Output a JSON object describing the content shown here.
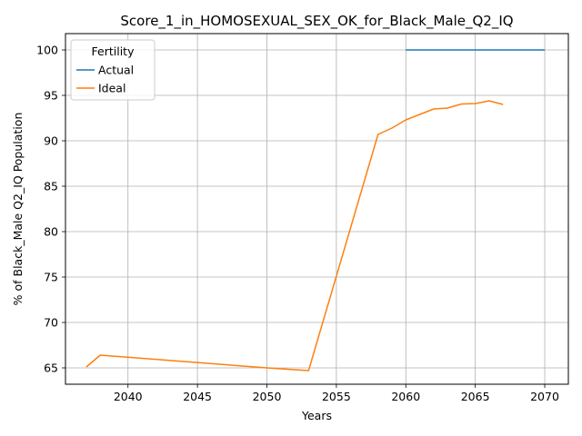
{
  "chart_data": {
    "type": "line",
    "title": "Score_1_in_HOMOSEXUAL_SEX_OK_for_Black_Male_Q2_IQ",
    "xlabel": "Years",
    "ylabel": "% of Black_Male Q2_IQ Population",
    "xlim": [
      2035.5,
      2071.7
    ],
    "ylim": [
      63.2,
      101.8
    ],
    "xticks": [
      2040,
      2045,
      2050,
      2055,
      2060,
      2065,
      2070
    ],
    "yticks": [
      65,
      70,
      75,
      80,
      85,
      90,
      95,
      100
    ],
    "grid": true,
    "legend": {
      "title": "Fertility",
      "placement": "top-left"
    },
    "series": [
      {
        "name": "Actual",
        "color": "#1f77b4",
        "x": [
          2060,
          2061,
          2062,
          2063,
          2064,
          2065,
          2066,
          2067,
          2068,
          2069,
          2070
        ],
        "y": [
          100,
          100,
          100,
          100,
          100,
          100,
          100,
          100,
          100,
          100,
          100
        ]
      },
      {
        "name": "Ideal",
        "color": "#ff7f0e",
        "x": [
          2037,
          2038,
          2050,
          2051,
          2053,
          2058,
          2059,
          2060,
          2061,
          2062,
          2063,
          2064,
          2065,
          2066,
          2067
        ],
        "y": [
          65.1,
          66.4,
          65.0,
          64.9,
          64.7,
          90.7,
          91.4,
          92.3,
          92.9,
          93.5,
          93.6,
          94.05,
          94.1,
          94.4,
          94.0
        ]
      }
    ]
  }
}
